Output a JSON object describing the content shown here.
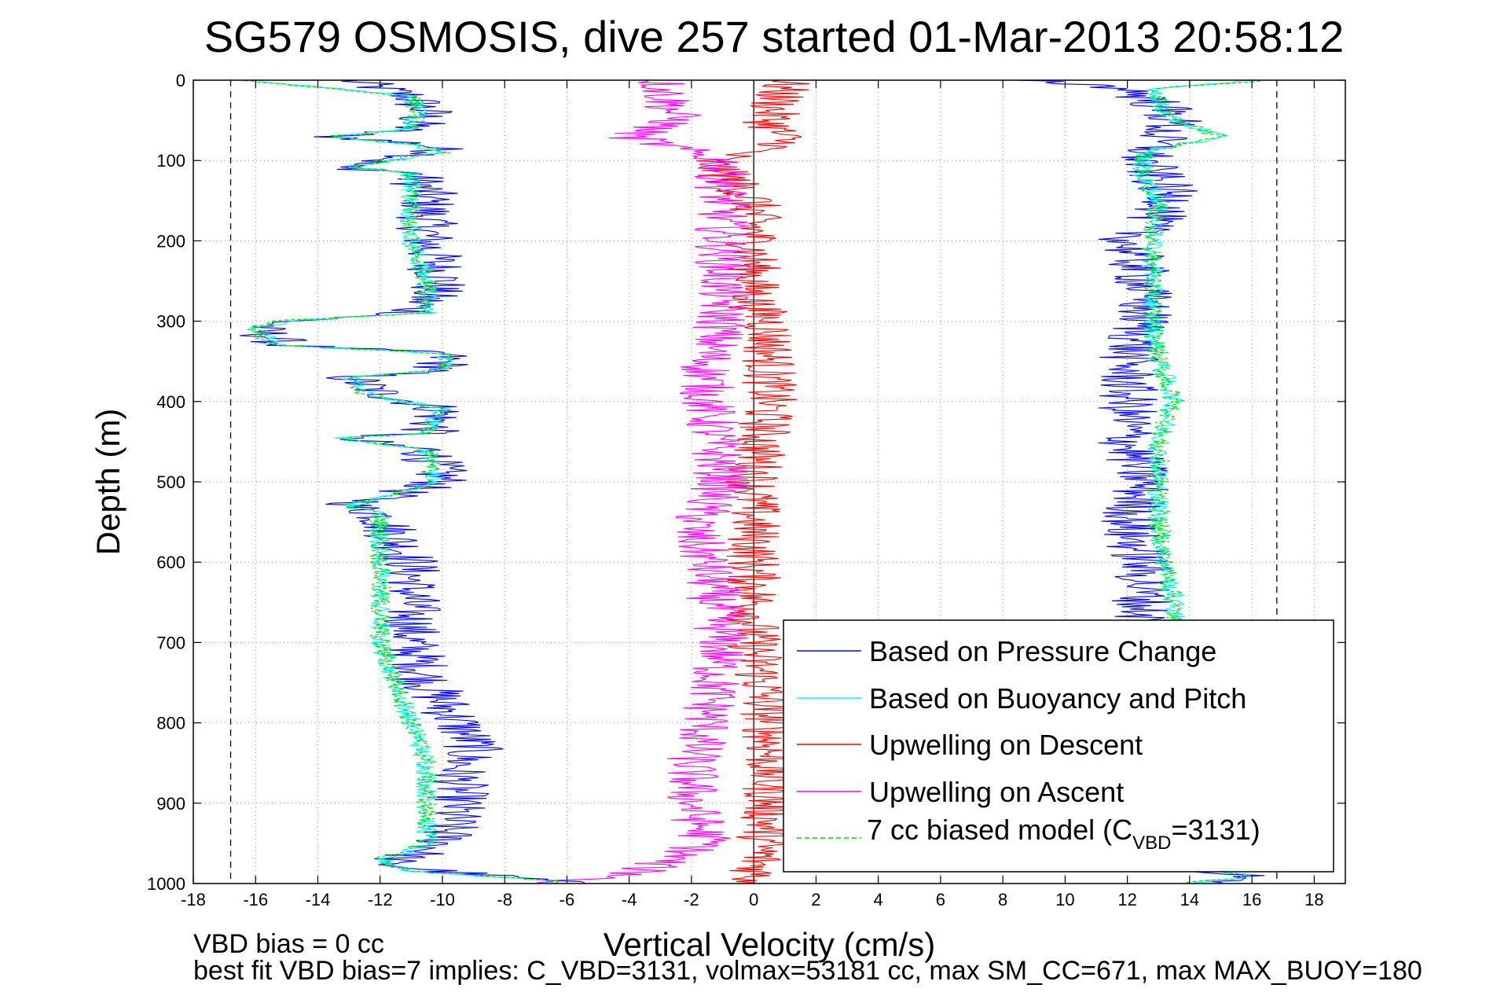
{
  "chart_data": {
    "type": "line",
    "title": "SG579 OSMOSIS, dive 257 started 01-Mar-2013 20:58:12",
    "xlabel": "Vertical Velocity (cm/s)",
    "ylabel": "Depth (m)",
    "xlim": [
      -18,
      19
    ],
    "ylim": [
      0,
      1000
    ],
    "y_reversed": true,
    "x_ticks": [
      -18,
      -16,
      -14,
      -12,
      -10,
      -8,
      -6,
      -4,
      -2,
      0,
      2,
      4,
      6,
      8,
      10,
      12,
      14,
      16,
      18
    ],
    "y_ticks": [
      0,
      100,
      200,
      300,
      400,
      500,
      600,
      700,
      800,
      900,
      1000
    ],
    "grid": true,
    "legend_position": "bottom-right",
    "reference_lines": [
      {
        "x": -16.8,
        "style": "dashed",
        "color": "#000000"
      },
      {
        "x": 0,
        "style": "solid",
        "color": "#000000"
      },
      {
        "x": 16.8,
        "style": "dashed",
        "color": "#000000"
      }
    ],
    "series": [
      {
        "name": "Based on Pressure Change",
        "color": "#0000ff",
        "style": "solid",
        "noise": 1.0,
        "points": [
          [
            0,
            -13
          ],
          [
            20,
            -11
          ],
          [
            40,
            -10.5
          ],
          [
            60,
            -11
          ],
          [
            70,
            -13.5
          ],
          [
            80,
            -10.5
          ],
          [
            90,
            -10
          ],
          [
            108,
            -13.5
          ],
          [
            115,
            -11
          ],
          [
            140,
            -10.5
          ],
          [
            200,
            -10.5
          ],
          [
            250,
            -10
          ],
          [
            290,
            -11
          ],
          [
            300,
            -15
          ],
          [
            310,
            -16
          ],
          [
            330,
            -15
          ],
          [
            340,
            -10
          ],
          [
            360,
            -10
          ],
          [
            370,
            -13
          ],
          [
            390,
            -12
          ],
          [
            410,
            -10
          ],
          [
            440,
            -10.5
          ],
          [
            445,
            -13.5
          ],
          [
            460,
            -10.5
          ],
          [
            500,
            -10
          ],
          [
            520,
            -12
          ],
          [
            530,
            -13
          ],
          [
            540,
            -12
          ],
          [
            600,
            -11
          ],
          [
            650,
            -11
          ],
          [
            700,
            -11
          ],
          [
            750,
            -10.5
          ],
          [
            800,
            -9.5
          ],
          [
            830,
            -9
          ],
          [
            860,
            -9.5
          ],
          [
            900,
            -9.5
          ],
          [
            950,
            -10
          ],
          [
            960,
            -10.5
          ],
          [
            975,
            -12
          ],
          [
            985,
            -10
          ],
          [
            995,
            -7
          ],
          [
            1000,
            -6
          ]
        ]
      },
      {
        "name": "Based on Buoyancy and Pitch",
        "color": "#00ffff",
        "style": "solid",
        "noise": 0.35,
        "points": [
          [
            0,
            -16
          ],
          [
            20,
            -11
          ],
          [
            40,
            -10.8
          ],
          [
            60,
            -11
          ],
          [
            70,
            -13.5
          ],
          [
            80,
            -11
          ],
          [
            90,
            -10
          ],
          [
            108,
            -13
          ],
          [
            115,
            -11
          ],
          [
            200,
            -11
          ],
          [
            250,
            -10.5
          ],
          [
            290,
            -10.5
          ],
          [
            300,
            -15
          ],
          [
            310,
            -16
          ],
          [
            330,
            -15
          ],
          [
            340,
            -10
          ],
          [
            360,
            -10
          ],
          [
            370,
            -13
          ],
          [
            390,
            -12.5
          ],
          [
            410,
            -10
          ],
          [
            440,
            -10.5
          ],
          [
            445,
            -13.5
          ],
          [
            460,
            -10.5
          ],
          [
            500,
            -10.2
          ],
          [
            520,
            -12
          ],
          [
            530,
            -13
          ],
          [
            540,
            -12
          ],
          [
            600,
            -12
          ],
          [
            650,
            -12
          ],
          [
            700,
            -12
          ],
          [
            750,
            -11.5
          ],
          [
            800,
            -11
          ],
          [
            850,
            -10.5
          ],
          [
            900,
            -10.5
          ],
          [
            950,
            -10.5
          ],
          [
            970,
            -12
          ],
          [
            985,
            -11
          ],
          [
            995,
            -7
          ],
          [
            1000,
            -6
          ]
        ]
      },
      {
        "name": "Upwelling on Descent",
        "color": "#ff0000",
        "style": "solid",
        "noise": 0.9,
        "points": [
          [
            0,
            1
          ],
          [
            50,
            0.5
          ],
          [
            80,
            1
          ],
          [
            100,
            -1.5
          ],
          [
            150,
            0
          ],
          [
            200,
            0
          ],
          [
            250,
            0
          ],
          [
            280,
            0
          ],
          [
            300,
            0.5
          ],
          [
            400,
            0.5
          ],
          [
            500,
            0
          ],
          [
            600,
            0
          ],
          [
            700,
            0
          ],
          [
            800,
            0.5
          ],
          [
            900,
            0.5
          ],
          [
            950,
            0.3
          ],
          [
            1000,
            0
          ]
        ]
      },
      {
        "name": "Upwelling on Ascent",
        "color": "#ff00ff",
        "style": "solid",
        "noise": 0.9,
        "points": [
          [
            0,
            -3
          ],
          [
            50,
            -2.5
          ],
          [
            70,
            -4
          ],
          [
            100,
            -1
          ],
          [
            200,
            -1
          ],
          [
            250,
            -1
          ],
          [
            300,
            -1
          ],
          [
            350,
            -1.5
          ],
          [
            400,
            -1.5
          ],
          [
            500,
            -1
          ],
          [
            560,
            -2
          ],
          [
            600,
            -1.5
          ],
          [
            700,
            -1
          ],
          [
            800,
            -1.5
          ],
          [
            850,
            -2
          ],
          [
            900,
            -2
          ],
          [
            950,
            -1.5
          ],
          [
            990,
            -4
          ],
          [
            1000,
            -7
          ]
        ]
      },
      {
        "name": "7 cc biased model (C_VBD=3131)",
        "color": "#00dd00",
        "style": "dashed",
        "noise": 0.35,
        "points": [
          [
            0,
            -16.5
          ],
          [
            20,
            -11
          ],
          [
            40,
            -10.8
          ],
          [
            60,
            -11
          ],
          [
            70,
            -13.5
          ],
          [
            80,
            -11
          ],
          [
            90,
            -10
          ],
          [
            108,
            -13
          ],
          [
            115,
            -11
          ],
          [
            200,
            -11
          ],
          [
            250,
            -10.5
          ],
          [
            290,
            -10.5
          ],
          [
            300,
            -15.5
          ],
          [
            310,
            -16
          ],
          [
            330,
            -15.5
          ],
          [
            340,
            -10
          ],
          [
            360,
            -10
          ],
          [
            370,
            -13
          ],
          [
            390,
            -12.5
          ],
          [
            410,
            -10
          ],
          [
            440,
            -10.5
          ],
          [
            445,
            -13.5
          ],
          [
            460,
            -10.5
          ],
          [
            500,
            -10.3
          ],
          [
            520,
            -12
          ],
          [
            530,
            -13
          ],
          [
            540,
            -12
          ],
          [
            600,
            -12
          ],
          [
            650,
            -12
          ],
          [
            700,
            -12
          ],
          [
            750,
            -11.5
          ],
          [
            800,
            -11
          ],
          [
            850,
            -10.5
          ],
          [
            900,
            -10.5
          ],
          [
            950,
            -10.5
          ],
          [
            970,
            -12
          ],
          [
            985,
            -11
          ],
          [
            995,
            -7
          ],
          [
            1000,
            -6
          ]
        ]
      },
      {
        "name": "Based on Pressure Change",
        "legend": false,
        "color": "#0000ff",
        "style": "solid",
        "noise": 1.0,
        "points": [
          [
            0,
            9
          ],
          [
            10,
            12
          ],
          [
            30,
            13
          ],
          [
            50,
            13.5
          ],
          [
            70,
            13
          ],
          [
            100,
            12.5
          ],
          [
            150,
            13.5
          ],
          [
            200,
            12
          ],
          [
            250,
            12.5
          ],
          [
            300,
            12.5
          ],
          [
            350,
            12
          ],
          [
            400,
            12
          ],
          [
            450,
            12
          ],
          [
            500,
            12.5
          ],
          [
            560,
            12
          ],
          [
            600,
            12.5
          ],
          [
            650,
            12.5
          ],
          [
            680,
            12.5
          ],
          [
            900,
            12.5
          ],
          [
            980,
            13
          ],
          [
            990,
            16
          ],
          [
            1000,
            14
          ]
        ]
      },
      {
        "name": "Based on Buoyancy and Pitch",
        "legend": false,
        "color": "#00ffff",
        "style": "solid",
        "noise": 0.35,
        "points": [
          [
            0,
            16
          ],
          [
            10,
            13
          ],
          [
            30,
            13
          ],
          [
            50,
            13.5
          ],
          [
            70,
            15
          ],
          [
            90,
            12.5
          ],
          [
            120,
            12.5
          ],
          [
            150,
            13
          ],
          [
            200,
            12.8
          ],
          [
            250,
            12.8
          ],
          [
            300,
            12.8
          ],
          [
            350,
            13
          ],
          [
            400,
            13.5
          ],
          [
            450,
            13
          ],
          [
            500,
            13
          ],
          [
            550,
            13
          ],
          [
            600,
            13.2
          ],
          [
            650,
            13.5
          ],
          [
            680,
            13.5
          ],
          [
            900,
            13.5
          ],
          [
            980,
            14
          ],
          [
            990,
            16
          ],
          [
            1000,
            14
          ]
        ]
      },
      {
        "name": "7 cc biased model (C_VBD=3131)",
        "legend": false,
        "color": "#00dd00",
        "style": "dashed",
        "noise": 0.35,
        "points": [
          [
            0,
            16.5
          ],
          [
            10,
            13
          ],
          [
            30,
            13
          ],
          [
            50,
            13.5
          ],
          [
            70,
            15
          ],
          [
            90,
            12.5
          ],
          [
            120,
            12.5
          ],
          [
            150,
            13
          ],
          [
            200,
            12.8
          ],
          [
            250,
            12.8
          ],
          [
            300,
            12.8
          ],
          [
            350,
            13
          ],
          [
            400,
            13.5
          ],
          [
            450,
            13
          ],
          [
            500,
            13
          ],
          [
            550,
            13
          ],
          [
            600,
            13.2
          ],
          [
            650,
            13.5
          ],
          [
            680,
            13.5
          ],
          [
            900,
            13.5
          ],
          [
            980,
            14
          ],
          [
            990,
            16
          ],
          [
            1000,
            14
          ]
        ]
      }
    ]
  },
  "legend": {
    "items": [
      {
        "label": "Based on Pressure Change",
        "color": "#0000ff",
        "style": "solid"
      },
      {
        "label": "Based on Buoyancy and Pitch",
        "color": "#00ffff",
        "style": "solid"
      },
      {
        "label": "Upwelling on Descent",
        "color": "#ff0000",
        "style": "solid"
      },
      {
        "label": "Upwelling on Ascent",
        "color": "#ff00ff",
        "style": "solid"
      },
      {
        "label_main": "7 cc biased model (C",
        "label_sub": "VBD",
        "label_tail": "=3131)",
        "color": "#00dd00",
        "style": "dashed"
      }
    ]
  },
  "footer": {
    "line1": "VBD bias = 0 cc",
    "line2": "best fit VBD bias=7 implies: C_VBD=3131, volmax=53181 cc, max SM_CC=671, max MAX_BUOY=180"
  }
}
